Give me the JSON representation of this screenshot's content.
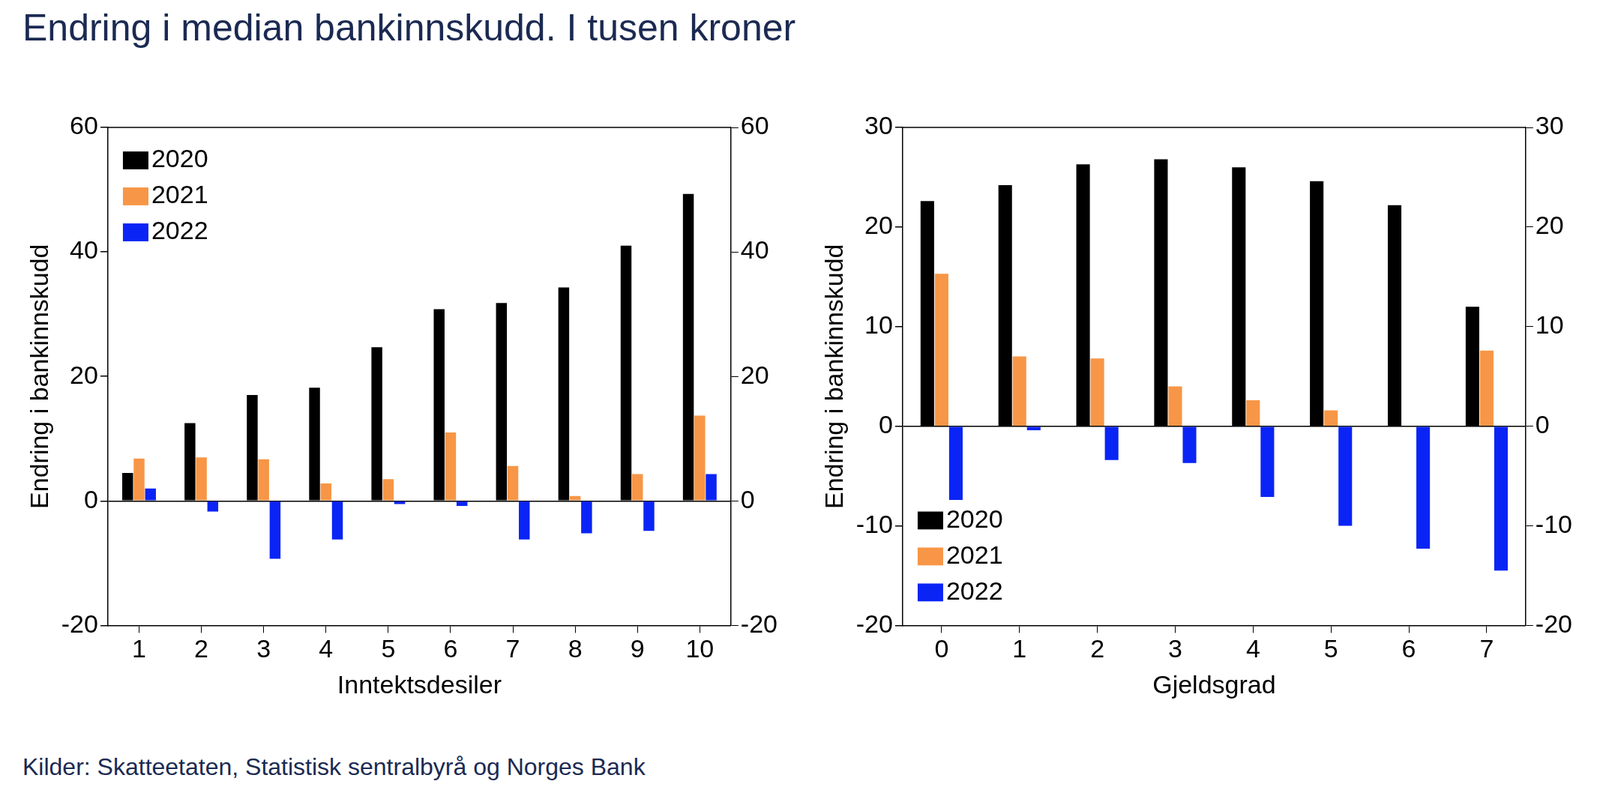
{
  "title": "Endring i median bankinnskudd. I tusen kroner",
  "source": "Kilder: Skatteetaten, Statistisk sentralbyrå og Norges Bank",
  "chart_data": [
    {
      "type": "bar",
      "x_label": "Inntektsdesiler",
      "y_label": "Endring i bankinnskudd",
      "categories": [
        "1",
        "2",
        "3",
        "4",
        "5",
        "6",
        "7",
        "8",
        "9",
        "10"
      ],
      "series": [
        {
          "name": "2020",
          "color": "#000000",
          "values": [
            4.5,
            12.5,
            17,
            18.2,
            24.7,
            30.8,
            31.8,
            34.3,
            41,
            49.3
          ]
        },
        {
          "name": "2021",
          "color": "#f79646",
          "values": [
            6.8,
            7,
            6.7,
            2.8,
            3.5,
            11,
            5.6,
            0.8,
            4.3,
            13.7
          ]
        },
        {
          "name": "2022",
          "color": "#0a24f5",
          "values": [
            2,
            -1.7,
            -9.3,
            -6.2,
            -0.5,
            -0.8,
            -6.2,
            -5.2,
            -4.8,
            4.3
          ]
        }
      ],
      "ylim": [
        -20,
        60
      ],
      "yticks": [
        -20,
        0,
        20,
        40,
        60
      ],
      "y2lim": [
        -20,
        60
      ],
      "y2ticks": [
        -20,
        0,
        20,
        40,
        60
      ],
      "grid": false,
      "legend": "upper left"
    },
    {
      "type": "bar",
      "x_label": "Gjeldsgrad",
      "y_label": "Endring i bankinnskudd",
      "categories": [
        "0",
        "1",
        "2",
        "3",
        "4",
        "5",
        "6",
        "7"
      ],
      "series": [
        {
          "name": "2020",
          "color": "#000000",
          "values": [
            22.6,
            24.2,
            26.3,
            26.8,
            26,
            24.6,
            22.2,
            12
          ]
        },
        {
          "name": "2021",
          "color": "#f79646",
          "values": [
            15.3,
            7,
            6.8,
            4,
            2.6,
            1.6,
            0,
            7.6
          ]
        },
        {
          "name": "2022",
          "color": "#0a24f5",
          "values": [
            -7.4,
            -0.4,
            -3.4,
            -3.7,
            -7.1,
            -10,
            -12.3,
            -14.5
          ]
        }
      ],
      "ylim": [
        -20,
        30
      ],
      "yticks": [
        -20,
        -10,
        0,
        10,
        20,
        30
      ],
      "y2lim": [
        -20,
        30
      ],
      "y2ticks": [
        -20,
        -10,
        0,
        10,
        20,
        30
      ],
      "grid": false,
      "legend": "lower left"
    }
  ]
}
